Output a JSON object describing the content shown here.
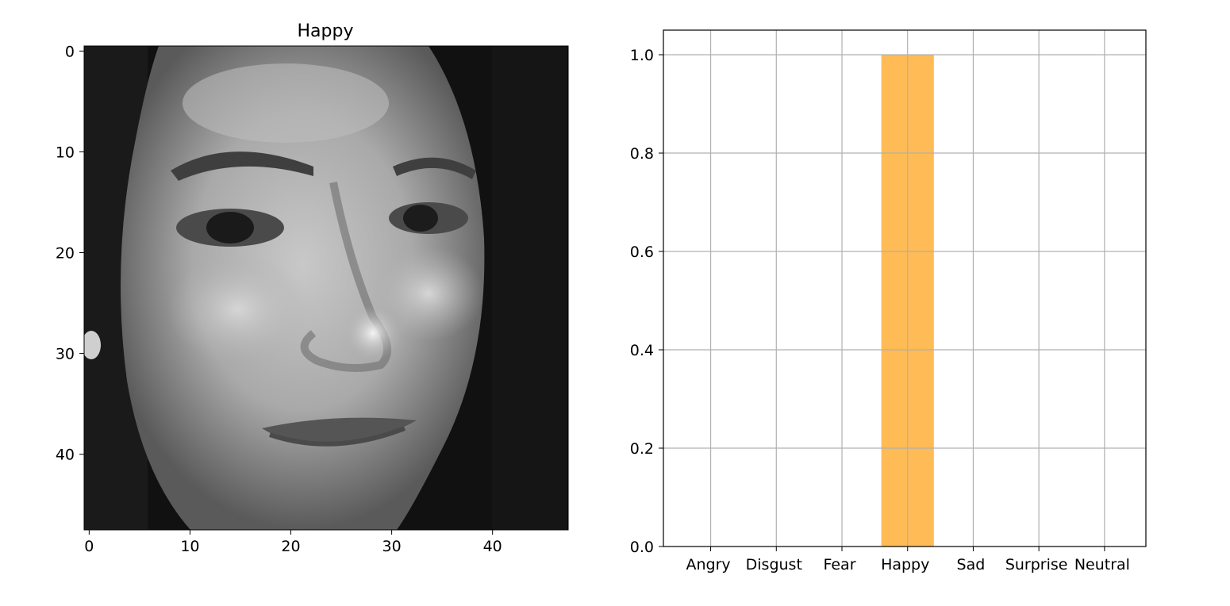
{
  "chart_data": [
    {
      "type": "heatmap",
      "title": "Happy",
      "colormap": "gray",
      "x_ticks": [
        0,
        10,
        20,
        30,
        40
      ],
      "y_ticks": [
        0,
        10,
        20,
        30,
        40
      ],
      "xlim": [
        -0.5,
        47.5
      ],
      "ylim": [
        47.5,
        -0.5
      ],
      "image_size": [
        48,
        48
      ]
    },
    {
      "type": "bar",
      "title": "",
      "categories": [
        "Angry",
        "Disgust",
        "Fear",
        "Happy",
        "Sad",
        "Surprise",
        "Neutral"
      ],
      "values": [
        0,
        0,
        0,
        1.0,
        0,
        0,
        0
      ],
      "ylim": [
        0,
        1.05
      ],
      "y_ticks": [
        "0.0",
        "0.2",
        "0.4",
        "0.6",
        "0.8",
        "1.0"
      ],
      "grid": true,
      "bar_color": "#ffbb55"
    }
  ]
}
